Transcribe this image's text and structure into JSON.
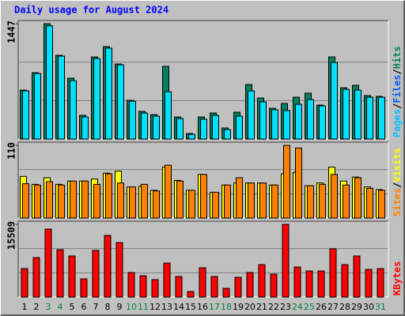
{
  "chart_data": [
    {
      "type": "bar",
      "title": "Daily usage for August 2024",
      "ylim": [
        0,
        1447
      ],
      "yticks": [
        1447
      ],
      "grid_fractions": true,
      "legend": [
        {
          "name": "Pages",
          "color": "#00c0ff"
        },
        {
          "name": "Files",
          "color": "#0060ff"
        },
        {
          "name": "Hits",
          "color": "#008060"
        }
      ],
      "legend_separator": "/",
      "series": [
        {
          "color": "#008060",
          "values": [
            614,
            832,
            1447,
            1050,
            763,
            297,
            1030,
            1160,
            941,
            485,
            347,
            307,
            912,
            277,
            69,
            277,
            327,
            139,
            337,
            684,
            515,
            386,
            446,
            525,
            575,
            426,
            1030,
            644,
            674,
            545,
            535
          ]
        },
        {
          "color": "#00e0ff",
          "values": [
            604,
            822,
            1420,
            1040,
            733,
            277,
            1010,
            1140,
            931,
            475,
            327,
            287,
            594,
            257,
            59,
            248,
            297,
            119,
            287,
            604,
            466,
            367,
            357,
            436,
            495,
            416,
            961,
            624,
            614,
            525,
            525
          ]
        }
      ]
    },
    {
      "type": "bar",
      "ylim": [
        0,
        110
      ],
      "yticks": [
        110
      ],
      "grid_fractions": true,
      "legend": [
        {
          "name": "Sites",
          "color": "#ff8000"
        },
        {
          "name": "Visits",
          "color": "#ffff00"
        }
      ],
      "legend_separator": "/",
      "series": [
        {
          "color": "#ffff00",
          "values": [
            63,
            51,
            61,
            51,
            56,
            56,
            59,
            68,
            71,
            47,
            48,
            42,
            77,
            57,
            42,
            66,
            39,
            50,
            53,
            53,
            53,
            50,
            67,
            69,
            49,
            53,
            77,
            56,
            62,
            47,
            43
          ]
        },
        {
          "color": "#ff8000",
          "values": [
            52,
            50,
            55,
            50,
            56,
            56,
            51,
            67,
            53,
            47,
            51,
            41,
            80,
            56,
            42,
            66,
            39,
            50,
            61,
            53,
            53,
            50,
            110,
            106,
            49,
            51,
            66,
            50,
            61,
            45,
            42
          ]
        }
      ]
    },
    {
      "type": "bar",
      "ylim": [
        0,
        15509
      ],
      "yticks": [
        15509
      ],
      "grid_fractions": true,
      "legend": [
        {
          "name": "KBytes",
          "color": "#ff0000"
        }
      ],
      "series": [
        {
          "color": "#ff0000",
          "values": [
            6070,
            8430,
            14500,
            10120,
            8770,
            3880,
            9950,
            13150,
            11630,
            5230,
            4550,
            3710,
            7250,
            4380,
            1180,
            6240,
            4380,
            1850,
            4210,
            5230,
            6910,
            4890,
            15509,
            6410,
            5560,
            5560,
            10290,
            6910,
            8770,
            5900,
            6070
          ]
        }
      ],
      "categories": [
        "1",
        "2",
        "3",
        "4",
        "5",
        "6",
        "7",
        "8",
        "9",
        "10",
        "11",
        "12",
        "13",
        "14",
        "15",
        "16",
        "17",
        "18",
        "19",
        "20",
        "21",
        "22",
        "23",
        "24",
        "25",
        "26",
        "27",
        "28",
        "29",
        "30",
        "31"
      ],
      "category_colors": [
        "#000000",
        "#000000",
        "#008040",
        "#008040",
        "#000000",
        "#000000",
        "#000000",
        "#000000",
        "#000000",
        "#008040",
        "#008040",
        "#000000",
        "#000000",
        "#000000",
        "#000000",
        "#000000",
        "#008040",
        "#008040",
        "#000000",
        "#000000",
        "#000000",
        "#000000",
        "#000000",
        "#008040",
        "#008040",
        "#000000",
        "#000000",
        "#000000",
        "#000000",
        "#000000",
        "#008040"
      ]
    }
  ]
}
